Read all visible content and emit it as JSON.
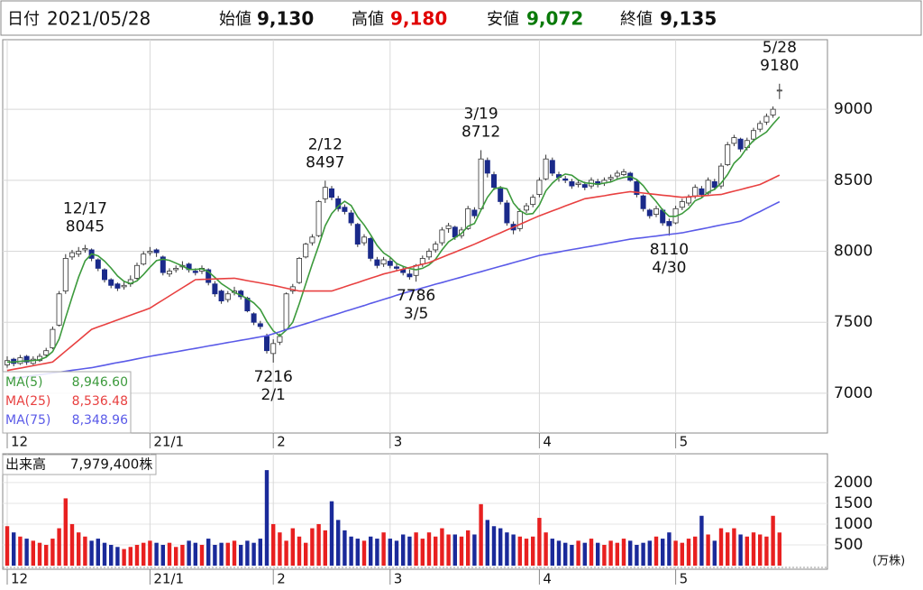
{
  "header": {
    "date_label": "日付",
    "date": "2021/05/28",
    "open_label": "始値",
    "open": "9,130",
    "high_label": "高値",
    "high": "9,180",
    "low_label": "安値",
    "low": "9,072",
    "close_label": "終値",
    "close": "9,135"
  },
  "chart_data": {
    "type": "candlestick",
    "categories": [
      "12",
      null,
      null,
      null,
      null,
      null,
      null,
      null,
      null,
      null,
      null,
      null,
      null,
      null,
      null,
      null,
      null,
      null,
      null,
      null,
      null,
      null,
      "21/1",
      null,
      null,
      null,
      null,
      null,
      null,
      null,
      null,
      null,
      null,
      null,
      null,
      null,
      null,
      null,
      null,
      null,
      null,
      "2",
      null,
      null,
      null,
      null,
      null,
      null,
      null,
      null,
      null,
      null,
      null,
      null,
      null,
      null,
      null,
      null,
      null,
      "3",
      null,
      null,
      null,
      null,
      null,
      null,
      null,
      null,
      null,
      null,
      null,
      null,
      null,
      null,
      null,
      null,
      null,
      null,
      null,
      null,
      null,
      null,
      "4",
      null,
      null,
      null,
      null,
      null,
      null,
      null,
      null,
      null,
      null,
      null,
      null,
      null,
      null,
      null,
      null,
      null,
      null,
      null,
      null,
      "5",
      null,
      null,
      null,
      null,
      null,
      null,
      null,
      null,
      null,
      null,
      null,
      null,
      null,
      null,
      null,
      null
    ],
    "candles": [
      [
        7200,
        7260,
        7180,
        7230
      ],
      [
        7240,
        7250,
        7190,
        7210
      ],
      [
        7210,
        7270,
        7200,
        7250
      ],
      [
        7260,
        7270,
        7200,
        7220
      ],
      [
        7210,
        7260,
        7200,
        7240
      ],
      [
        7230,
        7280,
        7220,
        7260
      ],
      [
        7270,
        7320,
        7250,
        7300
      ],
      [
        7320,
        7470,
        7310,
        7450
      ],
      [
        7480,
        7720,
        7470,
        7700
      ],
      [
        7720,
        7980,
        7700,
        7950
      ],
      [
        7960,
        8010,
        7940,
        7990
      ],
      [
        7980,
        8030,
        7960,
        8000
      ],
      [
        8010,
        8045,
        7990,
        8020
      ],
      [
        8010,
        8020,
        7930,
        7950
      ],
      [
        7940,
        7950,
        7860,
        7880
      ],
      [
        7870,
        7880,
        7780,
        7800
      ],
      [
        7800,
        7810,
        7740,
        7760
      ],
      [
        7770,
        7780,
        7720,
        7740
      ],
      [
        7750,
        7790,
        7730,
        7760
      ],
      [
        7770,
        7830,
        7750,
        7800
      ],
      [
        7810,
        7920,
        7800,
        7900
      ],
      [
        7910,
        8000,
        7900,
        7980
      ],
      [
        7990,
        8030,
        7970,
        8000
      ],
      [
        8010,
        8020,
        7960,
        7990
      ],
      [
        7960,
        7970,
        7830,
        7850
      ],
      [
        7840,
        7880,
        7820,
        7860
      ],
      [
        7870,
        7900,
        7850,
        7880
      ],
      [
        7890,
        7930,
        7870,
        7900
      ],
      [
        7910,
        7920,
        7850,
        7870
      ],
      [
        7860,
        7880,
        7830,
        7850
      ],
      [
        7860,
        7900,
        7840,
        7880
      ],
      [
        7870,
        7880,
        7760,
        7780
      ],
      [
        7770,
        7790,
        7680,
        7700
      ],
      [
        7720,
        7730,
        7630,
        7650
      ],
      [
        7660,
        7720,
        7640,
        7700
      ],
      [
        7710,
        7750,
        7690,
        7720
      ],
      [
        7720,
        7730,
        7660,
        7680
      ],
      [
        7670,
        7680,
        7570,
        7580
      ],
      [
        7560,
        7570,
        7480,
        7500
      ],
      [
        7490,
        7510,
        7450,
        7470
      ],
      [
        7400,
        7420,
        7280,
        7300
      ],
      [
        7280,
        7380,
        7216,
        7350
      ],
      [
        7360,
        7420,
        7340,
        7400
      ],
      [
        7450,
        7710,
        7440,
        7700
      ],
      [
        7720,
        7770,
        7700,
        7750
      ],
      [
        7780,
        7960,
        7770,
        7950
      ],
      [
        7960,
        8060,
        7950,
        8050
      ],
      [
        8060,
        8120,
        8040,
        8100
      ],
      [
        8110,
        8360,
        8100,
        8350
      ],
      [
        8370,
        8497,
        8340,
        8450
      ],
      [
        8440,
        8460,
        8360,
        8380
      ],
      [
        8370,
        8390,
        8280,
        8300
      ],
      [
        8310,
        8330,
        8260,
        8280
      ],
      [
        8270,
        8290,
        8180,
        8200
      ],
      [
        8190,
        8200,
        8030,
        8050
      ],
      [
        8060,
        8120,
        8040,
        8100
      ],
      [
        8090,
        8100,
        7930,
        7950
      ],
      [
        7940,
        7960,
        7880,
        7900
      ],
      [
        7910,
        7960,
        7890,
        7940
      ],
      [
        7930,
        7960,
        7880,
        7900
      ],
      [
        7890,
        7920,
        7860,
        7880
      ],
      [
        7870,
        7890,
        7830,
        7850
      ],
      [
        7840,
        7870,
        7800,
        7820
      ],
      [
        7830,
        7910,
        7786,
        7900
      ],
      [
        7910,
        7970,
        7890,
        7950
      ],
      [
        7960,
        8020,
        7940,
        8000
      ],
      [
        8010,
        8070,
        7990,
        8050
      ],
      [
        8060,
        8170,
        8040,
        8150
      ],
      [
        8160,
        8200,
        8130,
        8180
      ],
      [
        8170,
        8180,
        8080,
        8100
      ],
      [
        8110,
        8170,
        8090,
        8150
      ],
      [
        8160,
        8320,
        8150,
        8300
      ],
      [
        8290,
        8310,
        8230,
        8250
      ],
      [
        8300,
        8712,
        8290,
        8650
      ],
      [
        8640,
        8660,
        8520,
        8550
      ],
      [
        8540,
        8560,
        8430,
        8450
      ],
      [
        8440,
        8460,
        8330,
        8350
      ],
      [
        8340,
        8360,
        8180,
        8200
      ],
      [
        8190,
        8210,
        8120,
        8150
      ],
      [
        8160,
        8300,
        8140,
        8280
      ],
      [
        8290,
        8340,
        8270,
        8320
      ],
      [
        8330,
        8400,
        8310,
        8380
      ],
      [
        8400,
        8520,
        8380,
        8500
      ],
      [
        8510,
        8680,
        8500,
        8650
      ],
      [
        8640,
        8660,
        8530,
        8550
      ],
      [
        8540,
        8560,
        8490,
        8520
      ],
      [
        8510,
        8530,
        8480,
        8500
      ],
      [
        8490,
        8510,
        8440,
        8460
      ],
      [
        8470,
        8500,
        8450,
        8480
      ],
      [
        8470,
        8490,
        8430,
        8450
      ],
      [
        8460,
        8520,
        8440,
        8500
      ],
      [
        8490,
        8510,
        8450,
        8470
      ],
      [
        8480,
        8520,
        8460,
        8500
      ],
      [
        8510,
        8540,
        8490,
        8520
      ],
      [
        8530,
        8570,
        8510,
        8550
      ],
      [
        8540,
        8580,
        8530,
        8560
      ],
      [
        8550,
        8560,
        8490,
        8500
      ],
      [
        8490,
        8500,
        8380,
        8400
      ],
      [
        8390,
        8400,
        8280,
        8300
      ],
      [
        8290,
        8300,
        8230,
        8250
      ],
      [
        8260,
        8320,
        8240,
        8300
      ],
      [
        8290,
        8300,
        8180,
        8200
      ],
      [
        8210,
        8230,
        8110,
        8180
      ],
      [
        8200,
        8320,
        8190,
        8300
      ],
      [
        8310,
        8370,
        8290,
        8350
      ],
      [
        8340,
        8400,
        8320,
        8380
      ],
      [
        8390,
        8470,
        8370,
        8450
      ],
      [
        8440,
        8460,
        8380,
        8400
      ],
      [
        8410,
        8520,
        8390,
        8500
      ],
      [
        8490,
        8510,
        8430,
        8450
      ],
      [
        8460,
        8620,
        8440,
        8600
      ],
      [
        8610,
        8770,
        8600,
        8750
      ],
      [
        8760,
        8820,
        8740,
        8800
      ],
      [
        8790,
        8800,
        8700,
        8720
      ],
      [
        8730,
        8800,
        8710,
        8780
      ],
      [
        8790,
        8870,
        8770,
        8850
      ],
      [
        8860,
        8920,
        8840,
        8900
      ],
      [
        8910,
        8970,
        8890,
        8950
      ],
      [
        8960,
        9020,
        8940,
        9000
      ],
      [
        9130,
        9180,
        9072,
        9135
      ]
    ],
    "up_color": "#ffffff",
    "down_color": "#1a2a8a",
    "wick_color": "#333333",
    "series": [
      {
        "name": "MA(5)",
        "color": "#3c9a3c",
        "legend_label": "8,946.60",
        "values": [
          7220,
          7220,
          7225,
          7228,
          7230,
          7236,
          7254,
          7294,
          7382,
          7532,
          7678,
          7818,
          7932,
          7982,
          7968,
          7930,
          7882,
          7826,
          7788,
          7772,
          7792,
          7836,
          7888,
          7934,
          7944,
          7936,
          7916,
          7896,
          7872,
          7872,
          7876,
          7856,
          7816,
          7772,
          7742,
          7710,
          7690,
          7666,
          7636,
          7590,
          7506,
          7440,
          7404,
          7444,
          7500,
          7630,
          7770,
          7910,
          8040,
          8180,
          8266,
          8316,
          8352,
          8322,
          8242,
          8186,
          8116,
          8040,
          7988,
          7958,
          7914,
          7894,
          7878,
          7870,
          7880,
          7904,
          7944,
          8010,
          8066,
          8096,
          8126,
          8176,
          8196,
          8290,
          8380,
          8440,
          8450,
          8440,
          8340,
          8286,
          8260,
          8266,
          8326,
          8426,
          8480,
          8520,
          8544,
          8536,
          8502,
          8482,
          8478,
          8472,
          8480,
          8488,
          8508,
          8520,
          8526,
          8506,
          8462,
          8402,
          8350,
          8290,
          8246,
          8246,
          8266,
          8302,
          8356,
          8376,
          8416,
          8436,
          8480,
          8540,
          8620,
          8664,
          8730,
          8780,
          8810,
          8840,
          8896,
          8946.6
        ]
      },
      {
        "name": "MA(25)",
        "color": "#e84040",
        "legend_label": "8,536.48",
        "values": [
          7160,
          7169,
          7177,
          7186,
          7194,
          7203,
          7211,
          7220,
          7258,
          7297,
          7335,
          7373,
          7412,
          7450,
          7467,
          7483,
          7500,
          7517,
          7533,
          7550,
          7567,
          7583,
          7600,
          7629,
          7657,
          7686,
          7714,
          7743,
          7771,
          7800,
          7802,
          7803,
          7805,
          7807,
          7808,
          7810,
          7802,
          7793,
          7785,
          7777,
          7768,
          7760,
          7750,
          7740,
          7730,
          7720,
          7720,
          7720,
          7720,
          7720,
          7720,
          7735,
          7750,
          7765,
          7780,
          7795,
          7810,
          7825,
          7840,
          7851,
          7863,
          7874,
          7886,
          7897,
          7909,
          7920,
          7939,
          7957,
          7976,
          7994,
          8013,
          8031,
          8050,
          8070,
          8090,
          8110,
          8130,
          8150,
          8170,
          8190,
          8210,
          8230,
          8250,
          8267,
          8284,
          8301,
          8319,
          8336,
          8353,
          8370,
          8377,
          8384,
          8391,
          8399,
          8406,
          8413,
          8420,
          8415,
          8410,
          8405,
          8400,
          8395,
          8390,
          8385,
          8380,
          8383,
          8387,
          8390,
          8393,
          8397,
          8400,
          8412,
          8423,
          8435,
          8447,
          8458,
          8470,
          8492,
          8514,
          8536.48
        ]
      },
      {
        "name": "MA(75)",
        "color": "#5a5ae8",
        "legend_label": "8,348.96",
        "values": [
          7100,
          7106,
          7112,
          7118,
          7125,
          7131,
          7137,
          7143,
          7149,
          7155,
          7162,
          7168,
          7174,
          7180,
          7189,
          7198,
          7207,
          7216,
          7224,
          7233,
          7242,
          7251,
          7260,
          7268,
          7276,
          7284,
          7292,
          7300,
          7308,
          7316,
          7324,
          7333,
          7341,
          7349,
          7357,
          7365,
          7373,
          7381,
          7389,
          7397,
          7405,
          7419,
          7433,
          7448,
          7462,
          7476,
          7490,
          7504,
          7519,
          7533,
          7547,
          7561,
          7576,
          7590,
          7604,
          7618,
          7633,
          7647,
          7661,
          7675,
          7690,
          7704,
          7717,
          7729,
          7742,
          7755,
          7768,
          7780,
          7793,
          7806,
          7818,
          7831,
          7844,
          7856,
          7869,
          7882,
          7895,
          7907,
          7920,
          7933,
          7945,
          7958,
          7971,
          7979,
          7987,
          7995,
          8004,
          8012,
          8020,
          8028,
          8036,
          8044,
          8052,
          8061,
          8069,
          8077,
          8085,
          8091,
          8096,
          8102,
          8107,
          8113,
          8119,
          8124,
          8130,
          8139,
          8148,
          8157,
          8166,
          8176,
          8185,
          8194,
          8203,
          8212,
          8235,
          8258,
          8280,
          8303,
          8326,
          8348.96
        ]
      }
    ],
    "annotations": [
      {
        "date": "12/17",
        "value": 8045,
        "kind": "high"
      },
      {
        "date": "2/1",
        "value": 7216,
        "kind": "low"
      },
      {
        "date": "2/12",
        "value": 8497,
        "kind": "high"
      },
      {
        "date": "3/5",
        "value": 7786,
        "kind": "low"
      },
      {
        "date": "3/19",
        "value": 8712,
        "kind": "high"
      },
      {
        "date": "4/30",
        "value": 8110,
        "kind": "low"
      },
      {
        "date": "5/28",
        "value": 9180,
        "kind": "high"
      }
    ],
    "ylim": [
      6720,
      9490
    ],
    "yticks": [
      9000,
      8500,
      8000,
      7500,
      7000
    ],
    "grid": true,
    "volume": {
      "title": "出来高",
      "total_label": "7,979,400株",
      "unit": "(万株)",
      "up_color": "#e82020",
      "down_color": "#1a2a9a",
      "flat_color": "#999999",
      "values": [
        950,
        800,
        700,
        650,
        600,
        550,
        500,
        650,
        900,
        1620,
        1000,
        800,
        700,
        600,
        650,
        550,
        500,
        450,
        400,
        450,
        500,
        550,
        600,
        550,
        500,
        550,
        450,
        500,
        600,
        550,
        500,
        650,
        500,
        550,
        550,
        600,
        500,
        600,
        550,
        650,
        2300,
        1000,
        800,
        600,
        900,
        700,
        550,
        900,
        1000,
        850,
        1550,
        1100,
        850,
        700,
        650,
        600,
        700,
        650,
        800,
        650,
        600,
        750,
        700,
        800,
        650,
        800,
        700,
        900,
        750,
        750,
        700,
        850,
        750,
        1480,
        1100,
        950,
        900,
        800,
        750,
        700,
        650,
        700,
        1150,
        800,
        650,
        600,
        550,
        500,
        600,
        550,
        650,
        550,
        500,
        600,
        550,
        650,
        600,
        500,
        550,
        600,
        700,
        650,
        800,
        600,
        550,
        650,
        700,
        1200,
        750,
        600,
        900,
        800,
        900,
        750,
        700,
        800,
        750,
        700,
        1200,
        797.94
      ],
      "ylim": [
        0,
        2650
      ],
      "yticks": [
        2000,
        1500,
        1000,
        500
      ]
    }
  }
}
